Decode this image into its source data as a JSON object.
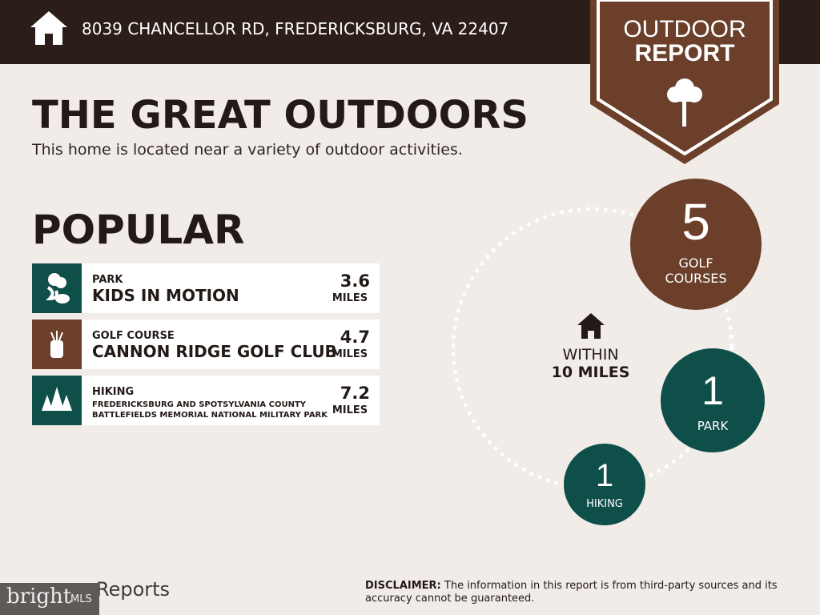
{
  "header": {
    "address": "8039 CHANCELLOR RD, FREDERICKSBURG, VA 22407",
    "icon": "home-icon"
  },
  "badge": {
    "line1": "OUTDOOR",
    "line2": "REPORT",
    "icon": "tree-icon"
  },
  "title": "THE GREAT OUTDOORS",
  "subtitle": "This home is located near a variety of outdoor activities.",
  "popular": {
    "heading": "POPULAR",
    "items": [
      {
        "category": "PARK",
        "name": "KIDS IN MOTION",
        "distance": "3.6",
        "unit": "MILES",
        "icon": "park-icon",
        "color": "#0f4f4a"
      },
      {
        "category": "GOLF COURSE",
        "name": "CANNON RIDGE GOLF CLUB",
        "distance": "4.7",
        "unit": "MILES",
        "icon": "golf-bag-icon",
        "color": "#6b3f2a"
      },
      {
        "category": "HIKING",
        "name": "FREDERICKSBURG AND SPOTSYLVANIA COUNTY BATTLEFIELDS MEMORIAL NATIONAL MILITARY PARK",
        "distance": "7.2",
        "unit": "MILES",
        "icon": "pine-trees-icon",
        "color": "#0f4f4a"
      }
    ]
  },
  "summary": {
    "within_line1": "WITHIN",
    "within_line2": "10 MILES",
    "golf": {
      "count": "5",
      "line1": "GOLF",
      "line2": "COURSES"
    },
    "park": {
      "count": "1",
      "label": "PARK"
    },
    "hiking": {
      "count": "1",
      "label": "HIKING"
    }
  },
  "footer": {
    "disclaimer_label": "DISCLAIMER:",
    "disclaimer_text": " The information in this report is from third-party sources and its accuracy cannot be guaranteed.",
    "logo_text": "bright",
    "logo_mls": "MLS",
    "reports": "Reports"
  },
  "colors": {
    "header": "#2b1d18",
    "brown": "#6b3f2a",
    "teal": "#0f4f4a",
    "background": "#f1ece8"
  }
}
